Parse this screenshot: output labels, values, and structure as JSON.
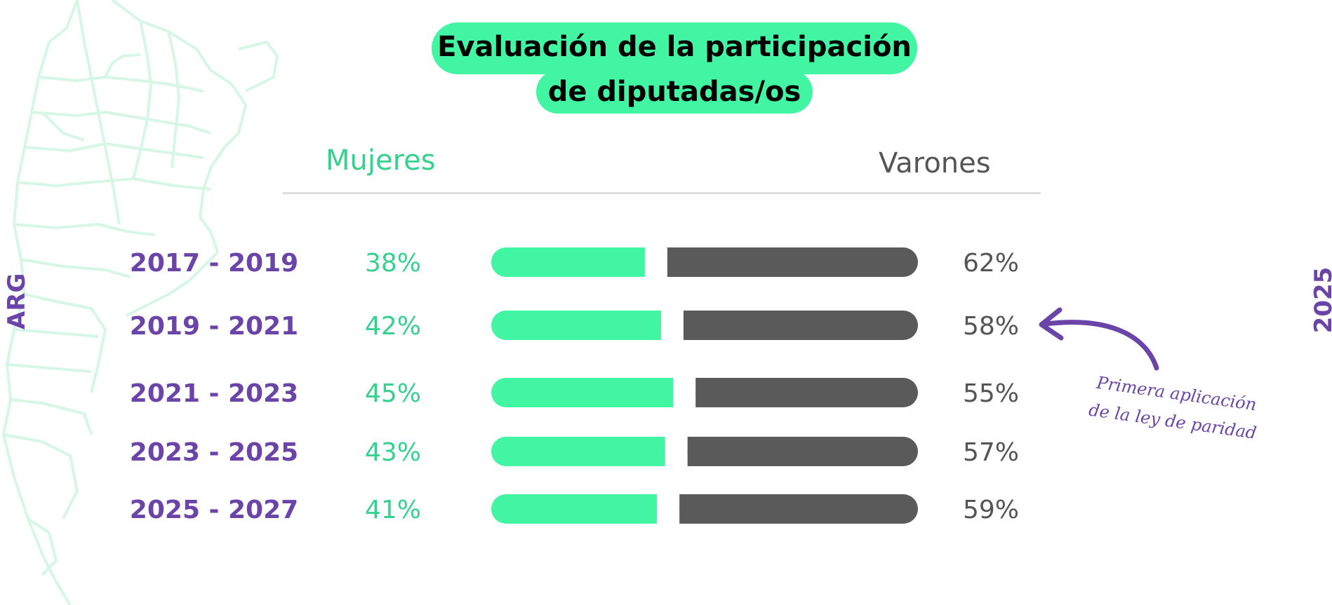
{
  "title": {
    "line1": "Evaluación de la participación",
    "line2": "de diputadas/os"
  },
  "headers": {
    "women": "Mujeres",
    "men": "Varones"
  },
  "side_labels": {
    "left": "ARG",
    "right": "2025"
  },
  "annotation": {
    "line1": "Primera aplicación",
    "line2": "de la ley de paridad"
  },
  "colors": {
    "women": "#41f5a3",
    "men": "#5a5a5a",
    "period_text": "#6b44a8",
    "accent_purple": "#6b44a8"
  },
  "chart_data": {
    "type": "bar",
    "stacked": true,
    "orientation": "horizontal",
    "categories": [
      "2017 - 2019",
      "2019 - 2021",
      "2021 - 2023",
      "2023 - 2025",
      "2025 - 2027"
    ],
    "series": [
      {
        "name": "Mujeres",
        "values": [
          38,
          42,
          45,
          43,
          41
        ],
        "labels": [
          "38%",
          "42%",
          "45%",
          "43%",
          "41%"
        ]
      },
      {
        "name": "Varones",
        "values": [
          62,
          58,
          55,
          57,
          59
        ],
        "labels": [
          "62%",
          "58%",
          "55%",
          "57%",
          "59%"
        ]
      }
    ],
    "xlim": [
      0,
      100
    ],
    "grid": false,
    "annotated_category": "2019 - 2021"
  }
}
